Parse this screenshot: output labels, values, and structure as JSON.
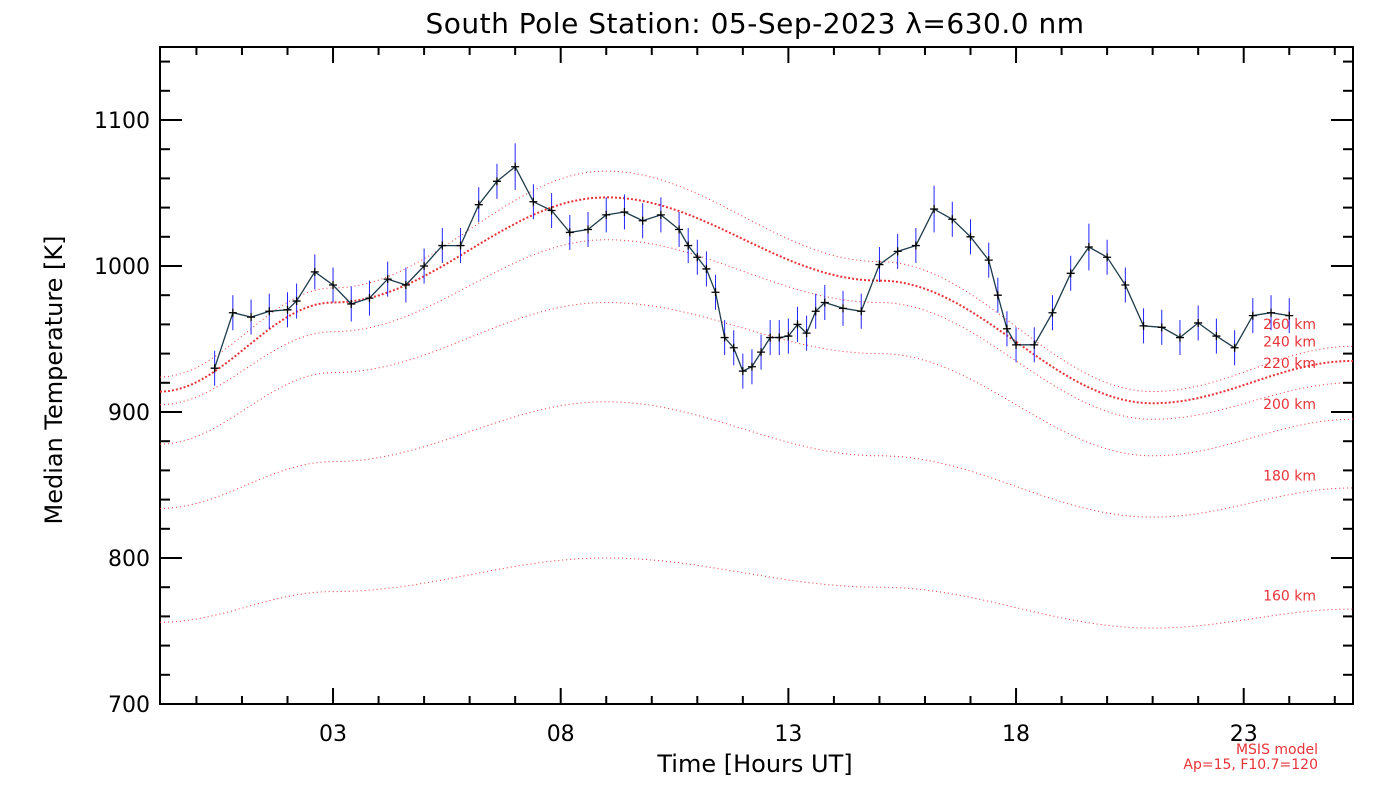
{
  "chart_data": {
    "type": "line",
    "title": "South Pole Station: 05-Sep-2023 λ=630.0 nm",
    "xlabel": "Time [Hours UT]",
    "ylabel": "Median Temperature [K]",
    "xlim": [
      -0.8,
      25.4
    ],
    "ylim": [
      700,
      1150
    ],
    "x_ticks": [
      3,
      8,
      13,
      18,
      23
    ],
    "x_tick_labels": [
      "03",
      "08",
      "13",
      "18",
      "23"
    ],
    "y_ticks": [
      700,
      800,
      900,
      1000,
      1100
    ],
    "y_tick_labels": [
      "700",
      "800",
      "900",
      "1000",
      "1100"
    ],
    "grid": false,
    "colors": {
      "data_line": "#1b3a4b",
      "error_bar": "#2222ff",
      "model": "#e8333a",
      "axis": "#000000"
    },
    "series": [
      {
        "x": [
          0.4,
          0.8,
          1.2,
          1.6,
          2.0,
          2.2,
          2.6,
          3.0,
          3.4,
          3.8,
          4.2,
          4.6,
          5.0,
          5.4,
          5.8,
          6.2,
          6.6,
          7.0,
          7.4,
          7.8,
          8.2,
          8.6,
          9.0,
          9.4,
          9.8,
          10.2,
          10.6,
          10.8,
          11.0,
          11.2,
          11.4,
          11.6,
          11.8,
          12.0,
          12.2,
          12.4,
          12.6,
          12.8,
          13.0,
          13.2,
          13.4,
          13.6,
          13.8,
          14.2,
          14.6,
          15.0,
          15.4,
          15.8,
          16.2,
          16.6,
          17.0,
          17.4,
          17.6,
          17.8,
          18.0,
          18.4,
          18.8,
          19.2,
          19.6,
          20.0,
          20.4,
          20.8,
          21.2,
          21.6,
          22.0,
          22.4,
          22.8,
          23.2,
          23.6,
          24.0
        ],
        "y": [
          930,
          968,
          965,
          969,
          970,
          976,
          996,
          987,
          974,
          978,
          991,
          987,
          1000,
          1014,
          1014,
          1042,
          1058,
          1068,
          1044,
          1038,
          1023,
          1025,
          1035,
          1037,
          1031,
          1035,
          1025,
          1014,
          1006,
          998,
          982,
          951,
          944,
          928,
          931,
          941,
          951,
          951,
          952,
          960,
          954,
          969,
          975,
          971,
          969,
          1001,
          1010,
          1014,
          1039,
          1032,
          1020,
          1004,
          980,
          957,
          946,
          946,
          968,
          995,
          1013,
          1006,
          987,
          959,
          958,
          951,
          961,
          952,
          944,
          966,
          968,
          966
        ],
        "err": [
          12,
          12,
          12,
          12,
          12,
          12,
          12,
          12,
          12,
          12,
          12,
          12,
          12,
          12,
          12,
          12,
          12,
          16,
          12,
          12,
          12,
          12,
          12,
          12,
          12,
          12,
          12,
          12,
          12,
          12,
          12,
          12,
          12,
          12,
          12,
          12,
          12,
          12,
          12,
          12,
          12,
          12,
          12,
          12,
          12,
          12,
          12,
          12,
          16,
          12,
          12,
          12,
          12,
          12,
          12,
          12,
          12,
          12,
          16,
          12,
          12,
          12,
          12,
          12,
          12,
          12,
          12,
          12,
          12,
          12
        ]
      }
    ],
    "model_curves": [
      {
        "label": "260 km",
        "bold": false,
        "points": [
          [
            -0.8,
            924
          ],
          [
            3,
            985
          ],
          [
            9,
            1065
          ],
          [
            15,
            1003
          ],
          [
            21,
            914
          ],
          [
            25.4,
            945
          ]
        ]
      },
      {
        "label": "240 km",
        "bold": true,
        "points": [
          [
            -0.8,
            914
          ],
          [
            3,
            975
          ],
          [
            9,
            1047
          ],
          [
            15,
            990
          ],
          [
            21,
            906
          ],
          [
            25.4,
            935
          ]
        ]
      },
      {
        "label": "220 km",
        "bold": false,
        "points": [
          [
            -0.8,
            905
          ],
          [
            3,
            955
          ],
          [
            9,
            1018
          ],
          [
            15,
            975
          ],
          [
            21,
            895
          ],
          [
            25.4,
            920
          ]
        ]
      },
      {
        "label": "200 km",
        "bold": false,
        "points": [
          [
            -0.8,
            878
          ],
          [
            3,
            927
          ],
          [
            9,
            975
          ],
          [
            15,
            940
          ],
          [
            21,
            870
          ],
          [
            25.4,
            895
          ]
        ]
      },
      {
        "label": "180 km",
        "bold": false,
        "points": [
          [
            -0.8,
            834
          ],
          [
            3,
            866
          ],
          [
            9,
            907
          ],
          [
            15,
            870
          ],
          [
            21,
            828
          ],
          [
            25.4,
            848
          ]
        ]
      },
      {
        "label": "160 km",
        "bold": false,
        "points": [
          [
            -0.8,
            756
          ],
          [
            3,
            777
          ],
          [
            9,
            800
          ],
          [
            15,
            780
          ],
          [
            21,
            752
          ],
          [
            25.4,
            765
          ]
        ]
      }
    ],
    "model_label_y": [
      957,
      945,
      930,
      902,
      853,
      771
    ],
    "annotation": [
      "MSIS model",
      "Ap=15, F10.7=120"
    ]
  }
}
